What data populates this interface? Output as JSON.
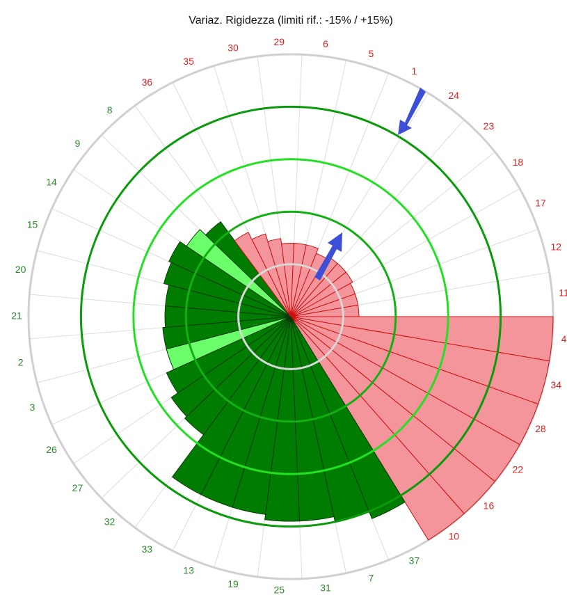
{
  "chart_data": {
    "type": "polar_bar",
    "title": "Variaz. Rigidezza (limiti rif.: -15% / +15%)",
    "categories": [
      "29",
      "6",
      "5",
      "1",
      "24",
      "23",
      "18",
      "17",
      "12",
      "11",
      "4",
      "34",
      "28",
      "22",
      "16",
      "10",
      "37",
      "7",
      "31",
      "25",
      "19",
      "13",
      "33",
      "32",
      "27",
      "26",
      "3",
      "2",
      "21",
      "20",
      "15",
      "14",
      "9",
      "8",
      "36",
      "35",
      "30"
    ],
    "values": [
      28,
      28,
      28,
      26,
      27,
      27,
      27,
      26,
      26,
      26,
      100,
      100,
      100,
      100,
      100,
      100,
      83,
      80,
      78,
      78,
      76,
      76,
      76,
      56,
      55,
      52,
      49,
      49,
      48,
      48,
      50,
      51,
      48,
      45,
      36,
      33,
      30
    ],
    "bar_colors": [
      "#f4959b",
      "#f4959b",
      "#f4959b",
      "#f4959b",
      "#f4959b",
      "#f4959b",
      "#f4959b",
      "#f4959b",
      "#f4959b",
      "#f4959b",
      "#f4959b",
      "#f4959b",
      "#f4959b",
      "#f4959b",
      "#f4959b",
      "#f4959b",
      "#007d00",
      "#007d00",
      "#007d00",
      "#007d00",
      "#007d00",
      "#007d00",
      "#007d00",
      "#007d00",
      "#007d00",
      "#007d00",
      "#6bff6b",
      "#007d00",
      "#007d00",
      "#007d00",
      "#007d00",
      "#007d00",
      "#6bff6b",
      "#007d00",
      "#f4959b",
      "#f4959b",
      "#f4959b"
    ],
    "rlim": [
      0,
      100
    ],
    "rings": [
      20,
      40,
      60,
      80
    ],
    "ring_colors": [
      "#d8d8d8",
      "#12b012",
      "#22e022",
      "#0a9a0a"
    ]
  }
}
